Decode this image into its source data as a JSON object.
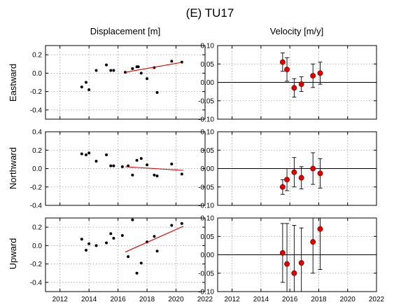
{
  "page_title": "(E) TU17",
  "columns": [
    "Displacement [m]",
    "Velocity [m/y]"
  ],
  "rows": [
    "Eastward",
    "Northward",
    "Upward"
  ],
  "colors": {
    "displacement_point": "#000000",
    "trend_line": "#e00000",
    "velocity_point": "#e00000",
    "velocity_edge": "#7a0000",
    "zero_line": "#000000"
  },
  "chart_data": [
    {
      "type": "scatter",
      "row": "Eastward",
      "column": "Displacement [m]",
      "xlim": [
        2011,
        2022
      ],
      "ylim": [
        -0.5,
        0.3
      ],
      "xticks": [
        2012,
        2014,
        2016,
        2018,
        2020,
        2022
      ],
      "yticks": [
        -0.4,
        -0.2,
        0.0,
        0.2
      ],
      "ytick_labels": [
        "-0.4",
        "-0.2",
        "0.0",
        "0.2"
      ],
      "xtick_labels": [
        "",
        "",
        "",
        "",
        "",
        ""
      ],
      "grid": true,
      "points": [
        [
          2013.5,
          -0.15
        ],
        [
          2013.8,
          -0.1
        ],
        [
          2014.0,
          -0.18
        ],
        [
          2014.5,
          0.03
        ],
        [
          2015.2,
          0.09
        ],
        [
          2015.5,
          0.03
        ],
        [
          2015.7,
          0.03
        ],
        [
          2016.5,
          0.01
        ],
        [
          2017.0,
          0.05
        ],
        [
          2017.3,
          0.07
        ],
        [
          2017.4,
          0.07
        ],
        [
          2017.6,
          0.0
        ],
        [
          2018.0,
          -0.06
        ],
        [
          2018.5,
          0.06
        ],
        [
          2018.7,
          -0.21
        ],
        [
          2019.7,
          0.13
        ],
        [
          2020.4,
          0.12
        ]
      ],
      "trend": [
        [
          2016.5,
          0.01
        ],
        [
          2020.5,
          0.12
        ]
      ]
    },
    {
      "type": "errorbar",
      "row": "Eastward",
      "column": "Velocity [m/y]",
      "xlim": [
        2011,
        2022
      ],
      "ylim": [
        -0.1,
        0.1
      ],
      "xticks": [
        2012,
        2014,
        2016,
        2018,
        2020,
        2022
      ],
      "yticks": [
        -0.1,
        -0.05,
        0.0,
        0.05,
        0.1
      ],
      "ytick_labels": [
        "-0.10",
        "-0.05",
        "0.00",
        "0.05",
        "0.10"
      ],
      "xtick_labels": [
        "",
        "",
        "",
        "",
        "",
        ""
      ],
      "grid": true,
      "zero_line": true,
      "points": [
        [
          2015.5,
          0.055,
          0.025
        ],
        [
          2015.8,
          0.035,
          0.032
        ],
        [
          2016.3,
          -0.015,
          0.025
        ],
        [
          2016.8,
          -0.005,
          0.02
        ],
        [
          2017.6,
          0.018,
          0.032
        ],
        [
          2018.1,
          0.025,
          0.03
        ]
      ]
    },
    {
      "type": "scatter",
      "row": "Northward",
      "column": "Displacement [m]",
      "xlim": [
        2011,
        2022
      ],
      "ylim": [
        -0.4,
        0.4
      ],
      "xticks": [
        2012,
        2014,
        2016,
        2018,
        2020,
        2022
      ],
      "yticks": [
        -0.4,
        -0.2,
        0.0,
        0.2,
        0.4
      ],
      "ytick_labels": [
        "-0.4",
        "-0.2",
        "0.0",
        "0.2",
        "0.4"
      ],
      "xtick_labels": [
        "",
        "",
        "",
        "",
        "",
        ""
      ],
      "grid": true,
      "points": [
        [
          2013.5,
          0.16
        ],
        [
          2013.8,
          0.15
        ],
        [
          2014.0,
          0.17
        ],
        [
          2014.5,
          0.08
        ],
        [
          2015.2,
          0.15
        ],
        [
          2015.5,
          0.03
        ],
        [
          2015.7,
          0.03
        ],
        [
          2016.3,
          0.02
        ],
        [
          2016.7,
          0.03
        ],
        [
          2017.0,
          -0.07
        ],
        [
          2017.3,
          0.09
        ],
        [
          2017.6,
          0.11
        ],
        [
          2018.0,
          0.04
        ],
        [
          2018.5,
          -0.07
        ],
        [
          2018.7,
          -0.08
        ],
        [
          2019.7,
          0.05
        ],
        [
          2020.4,
          -0.06
        ]
      ],
      "trend": [
        [
          2016.5,
          0.02
        ],
        [
          2020.5,
          -0.02
        ]
      ]
    },
    {
      "type": "errorbar",
      "row": "Northward",
      "column": "Velocity [m/y]",
      "xlim": [
        2011,
        2022
      ],
      "ylim": [
        -0.1,
        0.1
      ],
      "xticks": [
        2012,
        2014,
        2016,
        2018,
        2020,
        2022
      ],
      "yticks": [
        -0.1,
        -0.05,
        0.0,
        0.05,
        0.1
      ],
      "ytick_labels": [
        "-0.10",
        "-0.05",
        "0.00",
        "0.05",
        "0.10"
      ],
      "xtick_labels": [
        "",
        "",
        "",
        "",
        "",
        ""
      ],
      "grid": true,
      "zero_line": true,
      "points": [
        [
          2015.5,
          -0.05,
          0.02
        ],
        [
          2015.8,
          -0.03,
          0.03
        ],
        [
          2016.3,
          -0.01,
          0.04
        ],
        [
          2016.8,
          -0.025,
          0.03
        ],
        [
          2017.6,
          0.0,
          0.043
        ],
        [
          2018.1,
          -0.013,
          0.04
        ]
      ]
    },
    {
      "type": "scatter",
      "row": "Upward",
      "column": "Displacement [m]",
      "xlim": [
        2011,
        2022
      ],
      "ylim": [
        -0.5,
        0.3
      ],
      "xticks": [
        2012,
        2014,
        2016,
        2018,
        2020,
        2022
      ],
      "yticks": [
        -0.4,
        -0.2,
        0.0,
        0.2
      ],
      "ytick_labels": [
        "-0.4",
        "-0.2",
        "0.0",
        "0.2"
      ],
      "xtick_labels": [
        "2012",
        "2014",
        "2016",
        "2018",
        "2020",
        "2022"
      ],
      "grid": true,
      "points": [
        [
          2013.5,
          0.07
        ],
        [
          2013.8,
          -0.05
        ],
        [
          2014.0,
          0.02
        ],
        [
          2014.5,
          0.0
        ],
        [
          2015.2,
          0.03
        ],
        [
          2015.5,
          0.13
        ],
        [
          2015.7,
          0.08
        ],
        [
          2016.3,
          0.11
        ],
        [
          2016.7,
          -0.12
        ],
        [
          2017.0,
          0.28
        ],
        [
          2017.3,
          -0.3
        ],
        [
          2017.6,
          -0.19
        ],
        [
          2018.0,
          0.04
        ],
        [
          2018.5,
          0.1
        ],
        [
          2018.7,
          -0.06
        ],
        [
          2019.7,
          0.22
        ],
        [
          2020.4,
          0.24
        ]
      ],
      "trend": [
        [
          2016.5,
          -0.07
        ],
        [
          2020.5,
          0.21
        ]
      ]
    },
    {
      "type": "errorbar",
      "row": "Upward",
      "column": "Velocity [m/y]",
      "xlim": [
        2011,
        2022
      ],
      "ylim": [
        -0.1,
        0.1
      ],
      "xticks": [
        2012,
        2014,
        2016,
        2018,
        2020,
        2022
      ],
      "yticks": [
        -0.1,
        -0.05,
        0.0,
        0.05,
        0.1
      ],
      "ytick_labels": [
        "-0.10",
        "-0.05",
        "0.00",
        "0.05",
        "0.10"
      ],
      "xtick_labels": [
        "2012",
        "2014",
        "2016",
        "2018",
        "2020",
        "2022"
      ],
      "grid": true,
      "zero_line": true,
      "points": [
        [
          2015.5,
          0.005,
          0.08
        ],
        [
          2015.8,
          -0.025,
          0.11
        ],
        [
          2016.3,
          -0.05,
          0.13
        ],
        [
          2016.8,
          -0.022,
          0.095
        ],
        [
          2017.6,
          0.035,
          0.085
        ],
        [
          2018.1,
          0.07,
          0.11
        ]
      ]
    }
  ]
}
